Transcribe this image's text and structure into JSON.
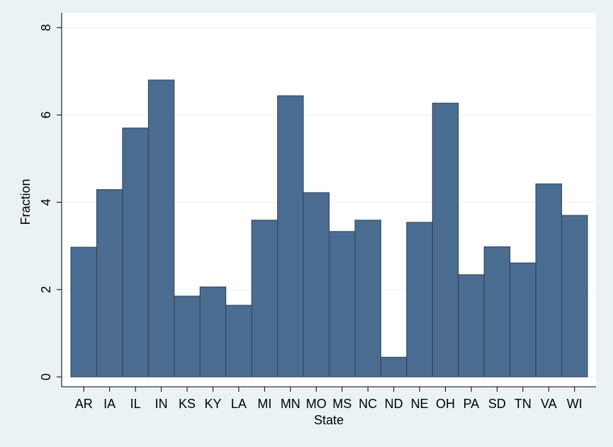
{
  "chart_data": {
    "type": "bar",
    "x_label": "State",
    "y_label": "Fraction",
    "categories": [
      "AR",
      "IA",
      "IL",
      "IN",
      "KS",
      "KY",
      "LA",
      "MI",
      "MN",
      "MO",
      "MS",
      "NC",
      "ND",
      "NE",
      "OH",
      "PA",
      "SD",
      "TN",
      "VA",
      "WI"
    ],
    "values": [
      2.97,
      4.29,
      5.7,
      6.8,
      1.85,
      2.06,
      1.64,
      3.59,
      6.44,
      4.22,
      3.33,
      3.59,
      0.45,
      3.54,
      6.27,
      2.34,
      2.98,
      2.61,
      4.42,
      3.7
    ],
    "color": "#4b6c91",
    "ylim": [
      0,
      8
    ],
    "yticks": [
      0,
      2,
      4,
      6,
      8
    ],
    "grid": true
  }
}
